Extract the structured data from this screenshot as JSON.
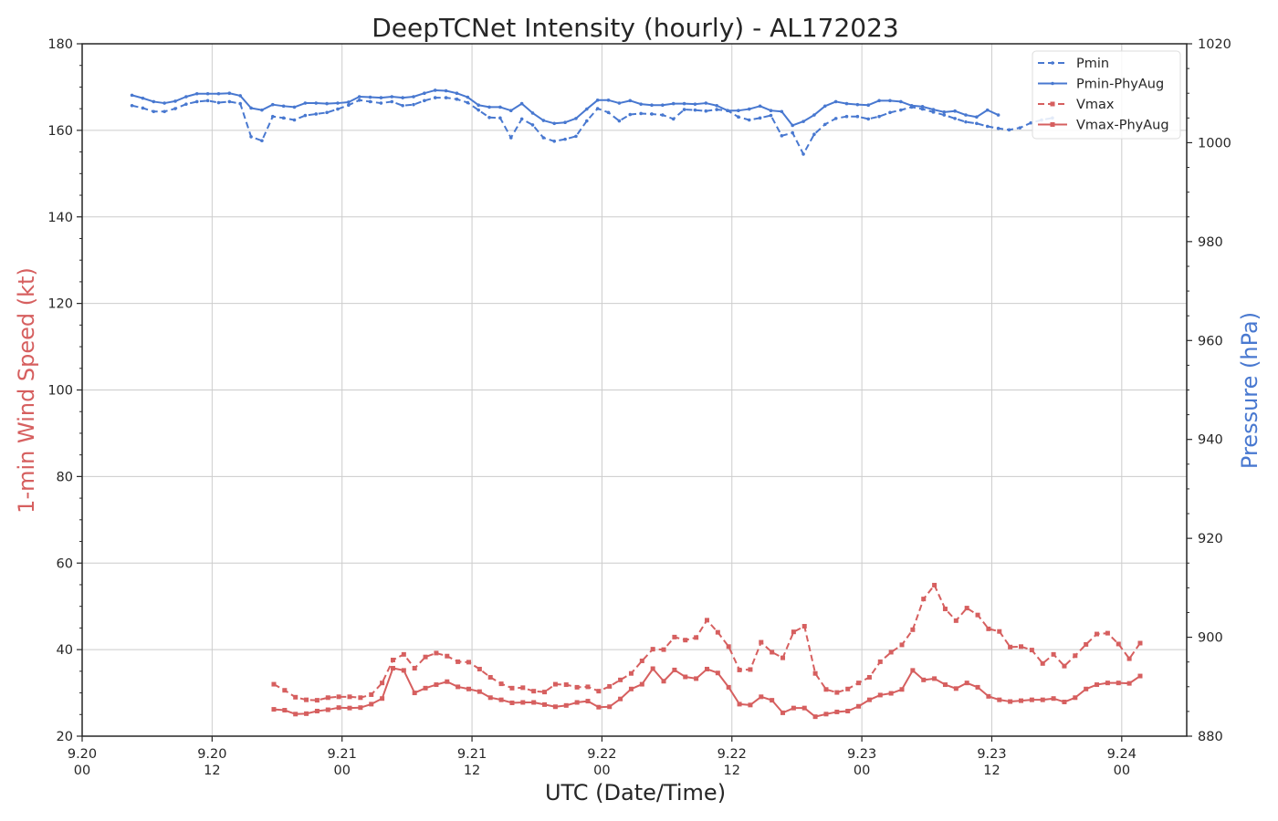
{
  "colors": {
    "vmax": "#d65f5f",
    "pmin": "#4878d0",
    "text": "#262626",
    "grid": "#cccccc"
  },
  "chart_data": {
    "type": "line",
    "title": "DeepTCNet Intensity (hourly) - AL172023",
    "xlabel": "UTC (Date/Time)",
    "ylabel": "1-min Wind Speed (kt)",
    "y2label": "Pressure (hPa)",
    "grid": true,
    "legend_position": "top-right",
    "x_start": "2023-09-20 00:00 UTC",
    "x_range_hours": [
      0,
      102
    ],
    "ylim": [
      20,
      180
    ],
    "y2lim": [
      880,
      1020
    ],
    "x_ticks": [
      {
        "hour": 0,
        "date": "9.20",
        "time": "00"
      },
      {
        "hour": 12,
        "date": "9.20",
        "time": "12"
      },
      {
        "hour": 24,
        "date": "9.21",
        "time": "00"
      },
      {
        "hour": 36,
        "date": "9.21",
        "time": "12"
      },
      {
        "hour": 48,
        "date": "9.22",
        "time": "00"
      },
      {
        "hour": 60,
        "date": "9.22",
        "time": "12"
      },
      {
        "hour": 72,
        "date": "9.23",
        "time": "00"
      },
      {
        "hour": 84,
        "date": "9.23",
        "time": "12"
      },
      {
        "hour": 96,
        "date": "9.24",
        "time": "00"
      }
    ],
    "y_ticks": [
      20,
      40,
      60,
      80,
      100,
      120,
      140,
      160,
      180
    ],
    "y2_ticks": [
      880,
      900,
      920,
      940,
      960,
      980,
      1000,
      1020
    ],
    "series": [
      {
        "name": "Pmin",
        "axis": "right",
        "style": "dashed",
        "marker": "dot",
        "color": "#4878d0",
        "x_start_hour": 4.6,
        "values": [
          1007.5,
          1007.0,
          1006.3,
          1006.3,
          1006.9,
          1007.8,
          1008.3,
          1008.5,
          1008.1,
          1008.3,
          1007.9,
          1001.2,
          1000.4,
          1005.3,
          1005.0,
          1004.6,
          1005.5,
          1005.8,
          1006.1,
          1006.8,
          1007.6,
          1008.6,
          1008.3,
          1008.0,
          1008.3,
          1007.5,
          1007.7,
          1008.5,
          1009.1,
          1009.1,
          1008.8,
          1008.1,
          1006.6,
          1005.1,
          1005.0,
          1001.0,
          1004.8,
          1003.6,
          1001.0,
          1000.3,
          1000.7,
          1001.3,
          1004.4,
          1006.9,
          1006.1,
          1004.4,
          1005.7,
          1005.9,
          1005.8,
          1005.6,
          1004.8,
          1006.7,
          1006.6,
          1006.4,
          1006.7,
          1006.5,
          1005.2,
          1004.6,
          1005.0,
          1005.5,
          1001.4,
          1002.0,
          997.7,
          1001.7,
          1003.7,
          1004.9,
          1005.3,
          1005.3,
          1004.8,
          1005.3,
          1006.1,
          1006.6,
          1007.2,
          1006.8,
          1006.2,
          1005.6,
          1004.9,
          1004.2,
          1003.9,
          1003.3,
          1002.9,
          1002.6,
          1003.0,
          1004.0,
          1004.6,
          1005.0
        ]
      },
      {
        "name": "Pmin-PhyAug",
        "axis": "right",
        "style": "solid",
        "marker": "dot",
        "color": "#4878d0",
        "x_start_hour": 4.6,
        "values": [
          1009.6,
          1009.0,
          1008.3,
          1008.0,
          1008.4,
          1009.3,
          1009.9,
          1009.9,
          1009.9,
          1010.0,
          1009.5,
          1007.0,
          1006.6,
          1007.7,
          1007.4,
          1007.2,
          1008.0,
          1008.0,
          1007.9,
          1008.0,
          1008.2,
          1009.3,
          1009.2,
          1009.1,
          1009.3,
          1009.1,
          1009.3,
          1010.0,
          1010.6,
          1010.5,
          1010.0,
          1009.2,
          1007.6,
          1007.2,
          1007.2,
          1006.5,
          1007.9,
          1006.0,
          1004.5,
          1003.9,
          1004.1,
          1004.9,
          1006.8,
          1008.6,
          1008.6,
          1008.0,
          1008.5,
          1007.8,
          1007.6,
          1007.6,
          1007.9,
          1007.9,
          1007.8,
          1008.0,
          1007.5,
          1006.5,
          1006.5,
          1006.8,
          1007.4,
          1006.5,
          1006.3,
          1003.5,
          1004.3,
          1005.6,
          1007.4,
          1008.3,
          1007.9,
          1007.7,
          1007.6,
          1008.5,
          1008.5,
          1008.3,
          1007.5,
          1007.3,
          1006.7,
          1006.2,
          1006.4,
          1005.6,
          1005.2,
          1006.6,
          1005.6
        ]
      },
      {
        "name": "Vmax",
        "axis": "left",
        "style": "dashed",
        "marker": "square",
        "color": "#d65f5f",
        "x_start_hour": 17.7,
        "values": [
          32.0,
          30.6,
          29.0,
          28.4,
          28.3,
          28.9,
          29.1,
          29.1,
          28.9,
          29.6,
          32.3,
          37.6,
          38.9,
          35.7,
          38.3,
          39.2,
          38.5,
          37.2,
          37.1,
          35.5,
          33.6,
          32.1,
          31.1,
          31.2,
          30.4,
          30.2,
          32.0,
          31.9,
          31.3,
          31.4,
          30.4,
          31.5,
          33.0,
          34.5,
          37.4,
          40.1,
          40.0,
          42.9,
          42.2,
          42.8,
          46.8,
          44.0,
          40.7,
          35.3,
          35.4,
          41.7,
          39.4,
          38.1,
          44.1,
          45.4,
          34.5,
          30.8,
          30.1,
          30.9,
          32.3,
          33.6,
          37.2,
          39.4,
          41.1,
          44.6,
          51.7,
          54.9,
          49.4,
          46.7,
          49.6,
          48.0,
          44.8,
          44.2,
          40.6,
          40.7,
          39.9,
          36.8,
          38.9,
          36.2,
          38.6,
          41.2,
          43.6,
          43.8,
          41.3,
          37.9,
          41.5
        ]
      },
      {
        "name": "Vmax-PhyAug",
        "axis": "left",
        "style": "solid",
        "marker": "square",
        "color": "#d65f5f",
        "x_start_hour": 17.7,
        "values": [
          26.2,
          26.0,
          25.1,
          25.2,
          25.8,
          26.1,
          26.6,
          26.5,
          26.6,
          27.4,
          28.7,
          35.7,
          35.2,
          30.0,
          31.1,
          31.9,
          32.6,
          31.4,
          30.9,
          30.3,
          28.9,
          28.4,
          27.7,
          27.8,
          27.8,
          27.3,
          26.8,
          27.1,
          27.8,
          28.1,
          26.7,
          26.8,
          28.6,
          30.9,
          32.0,
          35.6,
          32.7,
          35.3,
          33.7,
          33.3,
          35.5,
          34.6,
          31.3,
          27.4,
          27.2,
          29.1,
          28.3,
          25.4,
          26.5,
          26.5,
          24.5,
          25.1,
          25.6,
          25.8,
          26.9,
          28.4,
          29.5,
          29.9,
          30.8,
          35.2,
          33.0,
          33.3,
          31.9,
          31.0,
          32.3,
          31.3,
          29.2,
          28.4,
          28.0,
          28.2,
          28.4,
          28.4,
          28.7,
          27.9,
          28.9,
          30.9,
          31.9,
          32.3,
          32.3,
          32.2,
          33.9
        ]
      }
    ]
  }
}
